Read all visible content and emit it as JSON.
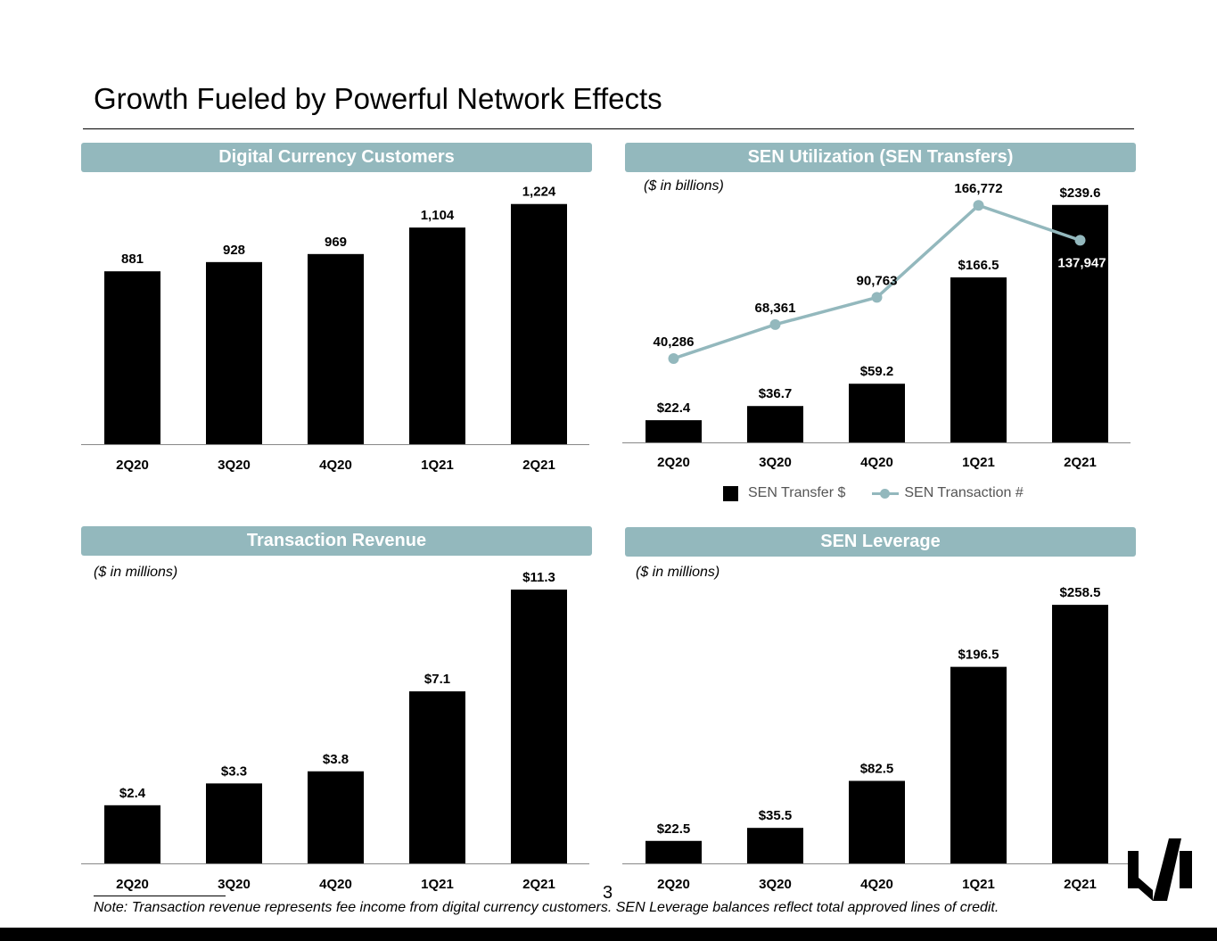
{
  "page": {
    "title": "Growth Fueled by Powerful Network Effects",
    "page_number": "3",
    "note": "Note: Transaction revenue represents fee income from digital currency customers. SEN Leverage balances reflect total approved lines of credit.",
    "logo_icon": "brand-logo-icon"
  },
  "colors": {
    "bar": "#000000",
    "line": "#93b8bd",
    "header_bg": "#93b8bd"
  },
  "chart_data": [
    {
      "id": "customers",
      "type": "bar",
      "title": "Digital Currency Customers",
      "subtitle": "",
      "categories": [
        "2Q20",
        "3Q20",
        "4Q20",
        "1Q21",
        "2Q21"
      ],
      "values": [
        881,
        928,
        969,
        1104,
        1224
      ],
      "value_labels": [
        "881",
        "928",
        "969",
        "1,104",
        "1,224"
      ],
      "ylim": [
        0,
        1400
      ]
    },
    {
      "id": "sen-transfers",
      "type": "bar",
      "title": "SEN Utilization (SEN Transfers)",
      "subtitle": "($ in billions)",
      "categories": [
        "2Q20",
        "3Q20",
        "4Q20",
        "1Q21",
        "2Q21"
      ],
      "series": [
        {
          "name": "SEN Transfer $",
          "type": "bar",
          "values": [
            22.4,
            36.7,
            59.2,
            166.5,
            239.6
          ],
          "value_labels": [
            "$22.4",
            "$36.7",
            "$59.2",
            "$166.5",
            "$239.6"
          ],
          "ylim": [
            0,
            270
          ]
        },
        {
          "name": "SEN Transaction #",
          "type": "line",
          "values": [
            40286,
            68361,
            90763,
            166772,
            137947
          ],
          "value_labels": [
            "40,286",
            "68,361",
            "90,763",
            "166,772",
            "137,947"
          ],
          "ylim": [
            -29000,
            192000
          ]
        }
      ],
      "legend": [
        "SEN Transfer $",
        "SEN Transaction #"
      ],
      "legend_position": "bottom"
    },
    {
      "id": "transaction-revenue",
      "type": "bar",
      "title": "Transaction Revenue",
      "subtitle": "($ in millions)",
      "categories": [
        "2Q20",
        "3Q20",
        "4Q20",
        "1Q21",
        "2Q21"
      ],
      "values": [
        2.4,
        3.3,
        3.8,
        7.1,
        11.3
      ],
      "value_labels": [
        "$2.4",
        "$3.3",
        "$3.8",
        "$7.1",
        "$11.3"
      ],
      "ylim": [
        0,
        12
      ]
    },
    {
      "id": "sen-leverage",
      "type": "bar",
      "title": "SEN Leverage",
      "subtitle": "($ in millions)",
      "categories": [
        "2Q20",
        "3Q20",
        "4Q20",
        "1Q21",
        "2Q21"
      ],
      "values": [
        22.5,
        35.5,
        82.5,
        196.5,
        258.5
      ],
      "value_labels": [
        "$22.5",
        "$35.5",
        "$82.5",
        "$196.5",
        "$258.5"
      ],
      "ylim": [
        0,
        280
      ]
    }
  ]
}
